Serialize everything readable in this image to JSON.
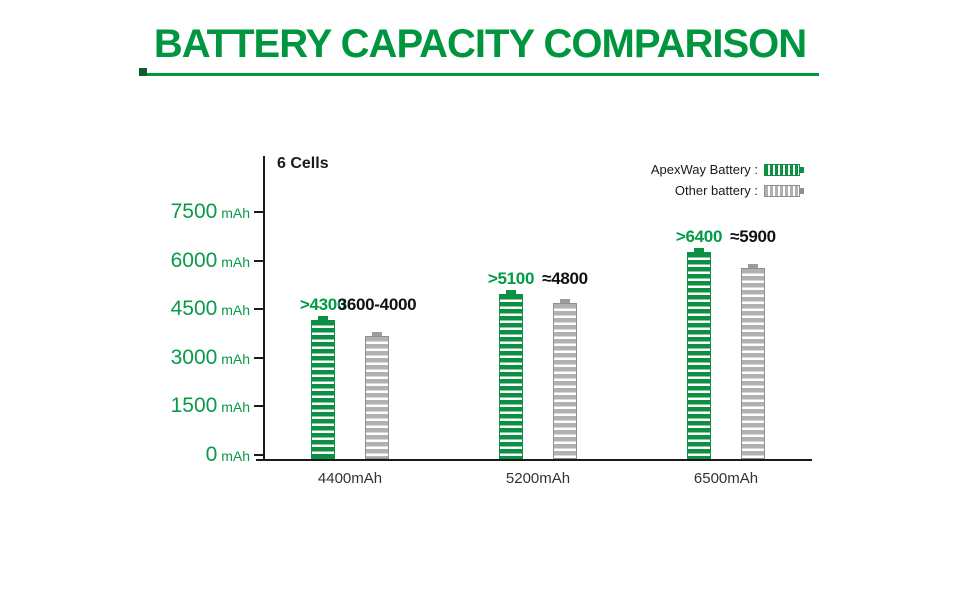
{
  "title": "BATTERY CAPACITY COMPARISON",
  "chart_data": {
    "type": "bar",
    "title": "BATTERY CAPACITY COMPARISON",
    "cells_label": "6 Cells",
    "unit": "mAh",
    "ylim": [
      0,
      7500
    ],
    "yticks": [
      7500,
      6000,
      4500,
      3000,
      1500,
      0
    ],
    "categories": [
      "4400mAh",
      "5200mAh",
      "6500mAh"
    ],
    "series": [
      {
        "name": "ApexWay Battery",
        "legend_label": "ApexWay Battery :",
        "color": "#0e9044",
        "values": [
          4300,
          5100,
          6400
        ],
        "value_labels": [
          ">4300",
          ">5100",
          ">6400"
        ]
      },
      {
        "name": "Other battery",
        "legend_label": "Other battery :",
        "color": "#b1b1b1",
        "values": [
          3800,
          4800,
          5900
        ],
        "value_labels": [
          "3600-4000",
          "≈4800",
          "≈5900"
        ]
      }
    ],
    "legend_position": "top-right",
    "grid": false
  },
  "colors": {
    "accent_green": "#009640",
    "text_dark": "#1a1a1a",
    "gray_bar": "#b1b1b1"
  }
}
